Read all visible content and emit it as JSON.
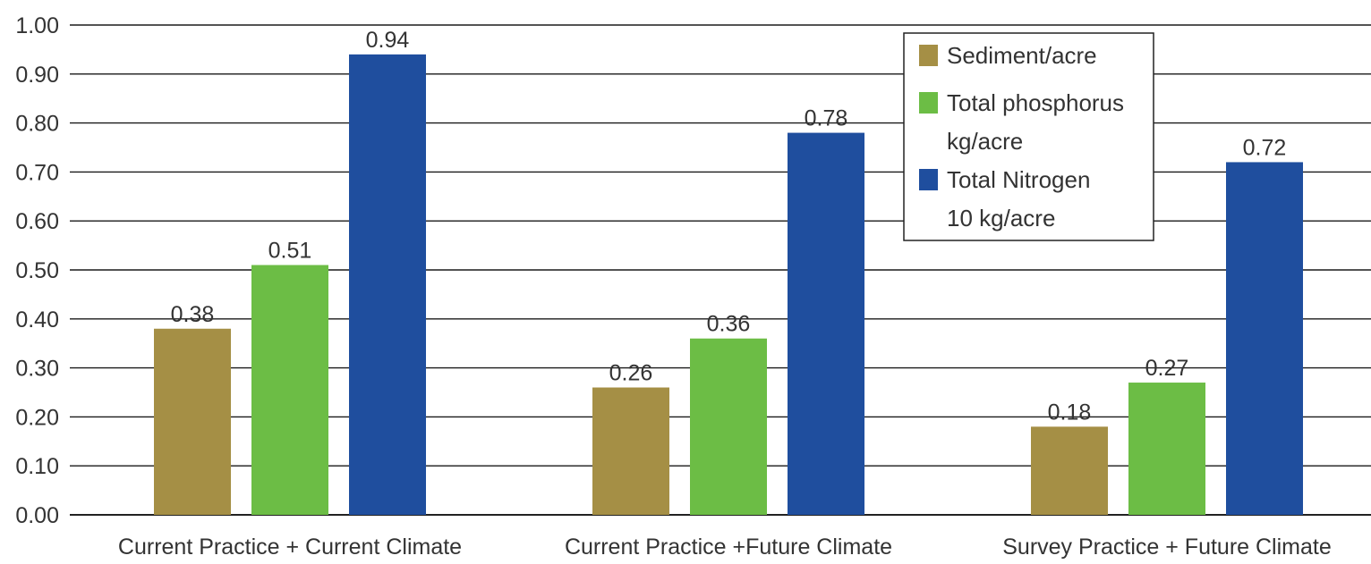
{
  "chart_data": {
    "type": "bar",
    "categories": [
      "Current Practice + Current Climate",
      "Current Practice +Future Climate",
      "Survey Practice + Future Climate"
    ],
    "series": [
      {
        "name": "Sediment/acre",
        "name_lines": [
          "Sediment/acre"
        ],
        "color": "#a58f45",
        "values": [
          0.38,
          0.26,
          0.18
        ],
        "labels": [
          "0.38",
          "0.26",
          "0.18"
        ]
      },
      {
        "name": "Total phosphorus kg/acre",
        "name_lines": [
          "Total phosphorus",
          "kg/acre"
        ],
        "color": "#6cbd45",
        "values": [
          0.51,
          0.36,
          0.27
        ],
        "labels": [
          "0.51",
          "0.36",
          "0.27"
        ]
      },
      {
        "name": "Total Nitrogen 10 kg/acre",
        "name_lines": [
          "Total Nitrogen",
          "10 kg/acre"
        ],
        "color": "#1f4e9e",
        "values": [
          0.94,
          0.78,
          0.72
        ],
        "labels": [
          "0.94",
          "0.78",
          "0.72"
        ]
      }
    ],
    "ylim": [
      0,
      1.0
    ],
    "yticks": [
      "0.00",
      "0.10",
      "0.20",
      "0.30",
      "0.40",
      "0.50",
      "0.60",
      "0.70",
      "0.80",
      "0.90",
      "1.00"
    ],
    "grid": true,
    "legend_position": "top-right",
    "title": "",
    "xlabel": "",
    "ylabel": ""
  }
}
